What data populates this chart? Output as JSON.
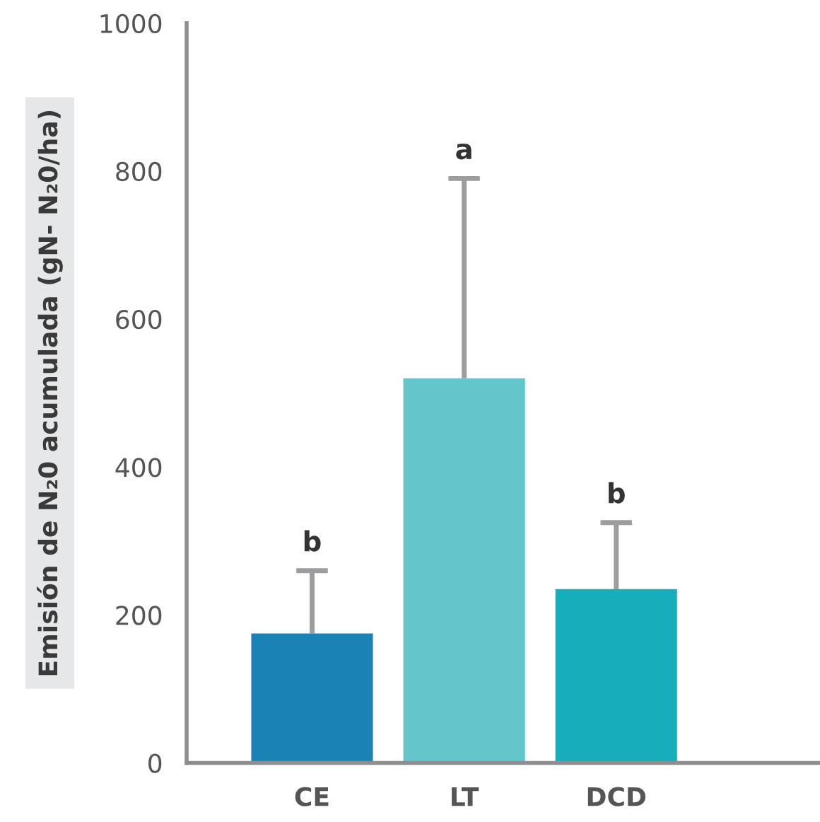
{
  "chart_data": {
    "type": "bar",
    "ylabel": "Emisión de N₂0 acumulada (gN- N₂0/ha)",
    "categories": [
      "CE",
      "LT",
      "DCD"
    ],
    "values": [
      175,
      520,
      235
    ],
    "colors": [
      "#1a82b5",
      "#62c6ca",
      "#16aebb"
    ],
    "errors": [
      [
        175,
        260
      ],
      [
        520,
        790
      ],
      [
        235,
        325
      ]
    ],
    "ylim": [
      0,
      1000
    ],
    "yticks": [
      0,
      200,
      400,
      600,
      800,
      1000
    ],
    "grid": false,
    "legend": false,
    "annotations": [
      {
        "text": "b",
        "x": "CE",
        "y": 260
      },
      {
        "text": "a",
        "x": "LT",
        "y": 790
      },
      {
        "text": "b",
        "x": "DCD",
        "y": 325
      }
    ]
  }
}
